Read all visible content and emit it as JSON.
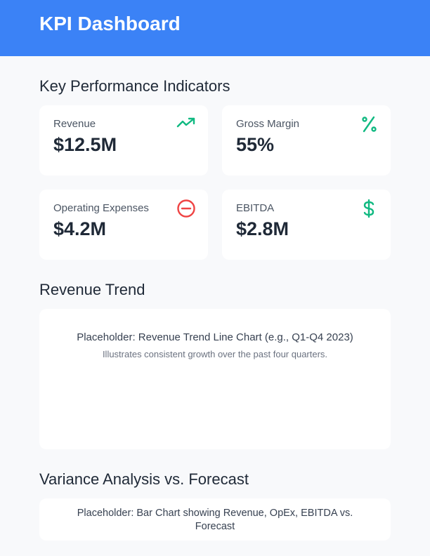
{
  "header": {
    "title": "KPI Dashboard"
  },
  "kpi": {
    "title": "Key Performance Indicators",
    "cards": [
      {
        "label": "Revenue",
        "value": "$12.5M",
        "icon": "trending-up-icon",
        "color": "#10b981"
      },
      {
        "label": "Gross Margin",
        "value": "55%",
        "icon": "percent-icon",
        "color": "#10b981"
      },
      {
        "label": "Operating Expenses",
        "value": "$4.2M",
        "icon": "minus-circle-icon",
        "color": "#ef4444"
      },
      {
        "label": "EBITDA",
        "value": "$2.8M",
        "icon": "dollar-icon",
        "color": "#10b981"
      }
    ]
  },
  "trend": {
    "title": "Revenue Trend",
    "placeholder": "Placeholder: Revenue Trend Line Chart (e.g., Q1-Q4 2023)",
    "caption": "Illustrates consistent growth over the past four quarters."
  },
  "variance": {
    "title": "Variance Analysis vs. Forecast",
    "placeholder": "Placeholder: Bar Chart showing Revenue, OpEx, EBITDA vs. Forecast"
  }
}
